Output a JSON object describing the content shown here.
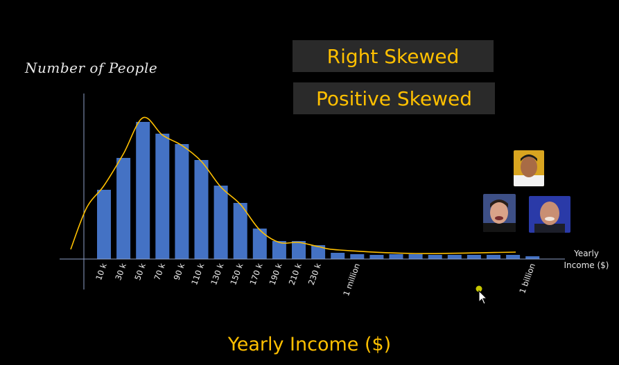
{
  "chart_data": {
    "type": "bar",
    "ylabel": "Number of People",
    "xlabel": "Yearly Income ($)",
    "x_axis_unit_label": [
      "Yearly",
      "Income ($)"
    ],
    "annotations": [
      "Right Skewed",
      "Positive Skewed"
    ],
    "categories": [
      "10 k",
      "30 k",
      "50 k",
      "70 k",
      "90 k",
      "110 k",
      "130 k",
      "150 k",
      "170 k",
      "190 k",
      "210 k",
      "230 k",
      "",
      "1 million",
      "",
      "",
      "",
      "",
      "",
      "",
      "",
      "",
      "1 billion"
    ],
    "values": [
      100,
      146,
      198,
      181,
      166,
      143,
      106,
      81,
      44,
      26,
      26,
      20,
      9,
      7,
      6,
      7,
      7,
      6,
      6,
      6,
      6,
      6,
      4
    ],
    "ylim": [
      0,
      220
    ],
    "curve": "smooth right-skewed density fit overlaid on bars",
    "colors": {
      "bar": "#4472c4",
      "curve": "#ffc000",
      "axis": "#8ea0c8",
      "annotation": "#ffc000"
    },
    "grid": false,
    "legend": "none"
  },
  "portraits": [
    {
      "icon": "person-portrait-icon",
      "name": ""
    },
    {
      "icon": "person-portrait-icon",
      "name": ""
    },
    {
      "icon": "person-portrait-icon",
      "name": ""
    }
  ],
  "cursor_icon": "mouse-pointer-icon"
}
